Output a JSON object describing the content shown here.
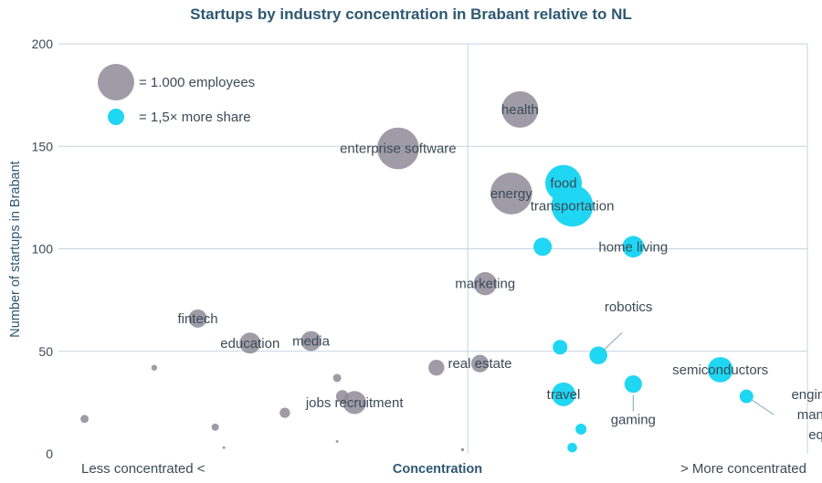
{
  "chart_data": {
    "type": "scatter",
    "title": "Startups by industry concentration in Brabant relative to NL",
    "ylabel": "Number of startups in Brabant",
    "xlabel": "Concentration",
    "x_left_label": "Less concentrated <",
    "x_right_label": "> More concentrated",
    "ylim": [
      0,
      200
    ],
    "yticks": [
      "0",
      "50",
      "100",
      "150",
      "200"
    ],
    "grid": true,
    "legend_position": "top-left",
    "legend": [
      {
        "label": "= 1.000 employees",
        "color": "#8e8b98"
      },
      {
        "label": "= 1,5× more share",
        "color": "#1fd6f3"
      }
    ],
    "colors": {
      "grey": "#8e8b98",
      "cyan": "#1fd6f3",
      "grid": "#c6d4e0",
      "title": "#2e5872"
    },
    "series": [
      {
        "name": "health",
        "x": 1.3,
        "y": 168,
        "employees": 1000,
        "concentrated": false
      },
      {
        "name": "enterprise software",
        "x": 0.6,
        "y": 149,
        "employees": 1300,
        "concentrated": false
      },
      {
        "name": "energy",
        "x": 1.25,
        "y": 127,
        "employees": 1300,
        "concentrated": false
      },
      {
        "name": "food",
        "x": 1.55,
        "y": 132,
        "employees": 1000,
        "concentrated": true
      },
      {
        "name": "transportation",
        "x": 1.6,
        "y": 121,
        "employees": 1300,
        "concentrated": true
      },
      {
        "name": "home living",
        "x": 1.95,
        "y": 101,
        "employees": 350,
        "concentrated": true
      },
      {
        "name": "",
        "x": 1.43,
        "y": 101,
        "employees": 250,
        "concentrated": true
      },
      {
        "name": "marketing",
        "x": 1.1,
        "y": 83,
        "employees": 400,
        "concentrated": false
      },
      {
        "name": "fintech",
        "x": -0.55,
        "y": 66,
        "employees": 250,
        "concentrated": false
      },
      {
        "name": "education",
        "x": -0.25,
        "y": 54,
        "employees": 330,
        "concentrated": false
      },
      {
        "name": "media",
        "x": 0.1,
        "y": 55,
        "employees": 300,
        "concentrated": false
      },
      {
        "name": "real estate",
        "x": 1.07,
        "y": 44,
        "employees": 230,
        "concentrated": false
      },
      {
        "name": "",
        "x": 0.82,
        "y": 42,
        "employees": 190,
        "concentrated": false
      },
      {
        "name": "robotics",
        "x": 1.75,
        "y": 48,
        "employees": 240,
        "concentrated": true
      },
      {
        "name": "",
        "x": 1.53,
        "y": 52,
        "employees": 160,
        "concentrated": true
      },
      {
        "name": "semiconductors",
        "x": 2.45,
        "y": 41,
        "employees": 480,
        "concentrated": true
      },
      {
        "name": "engineering and manufacturing equipment",
        "x": 2.6,
        "y": 28,
        "employees": 140,
        "concentrated": true
      },
      {
        "name": "gaming",
        "x": 1.95,
        "y": 34,
        "employees": 230,
        "concentrated": true
      },
      {
        "name": "travel",
        "x": 1.55,
        "y": 29,
        "employees": 420,
        "concentrated": true
      },
      {
        "name": "jobs recruitment",
        "x": 0.35,
        "y": 25,
        "employees": 400,
        "concentrated": false
      },
      {
        "name": "",
        "x": 0.28,
        "y": 28,
        "employees": 120,
        "concentrated": false
      },
      {
        "name": "",
        "x": 0.25,
        "y": 37,
        "employees": 50,
        "concentrated": false
      },
      {
        "name": "",
        "x": -0.05,
        "y": 20,
        "employees": 80,
        "concentrated": false
      },
      {
        "name": "",
        "x": -0.45,
        "y": 13,
        "employees": 40,
        "concentrated": false
      },
      {
        "name": "",
        "x": -1.2,
        "y": 17,
        "employees": 50,
        "concentrated": false
      },
      {
        "name": "",
        "x": -0.8,
        "y": 42,
        "employees": 25,
        "concentrated": false
      },
      {
        "name": "",
        "x": 1.65,
        "y": 12,
        "employees": 90,
        "concentrated": true
      },
      {
        "name": "",
        "x": 1.6,
        "y": 3,
        "employees": 70,
        "concentrated": true
      },
      {
        "name": "",
        "x": 0.25,
        "y": 6,
        "employees": 5,
        "concentrated": false
      },
      {
        "name": "",
        "x": -0.4,
        "y": 3,
        "employees": 3,
        "concentrated": false
      },
      {
        "name": "",
        "x": 0.97,
        "y": 2,
        "employees": 8,
        "concentrated": false
      }
    ]
  }
}
